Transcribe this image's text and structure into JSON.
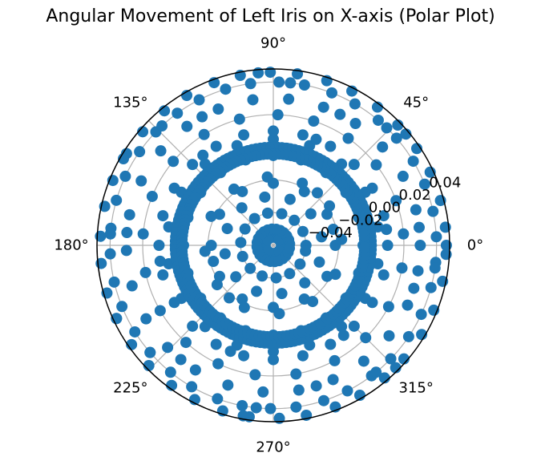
{
  "chart_data": {
    "type": "scatter",
    "projection": "polar",
    "title": "Angular Movement of Left Iris on X-axis (Polar Plot)",
    "theta_unit": "degrees",
    "angle_ticks": [
      "0°",
      "45°",
      "90°",
      "135°",
      "180°",
      "225°",
      "270°",
      "315°"
    ],
    "radial_ticks": [
      "−0.04",
      "−0.02",
      "0.00",
      "0.02",
      "0.04"
    ],
    "radial_tick_values": [
      -0.04,
      -0.02,
      0.0,
      0.02,
      0.04
    ],
    "rlim": [
      -0.06,
      0.048
    ],
    "grid": true,
    "marker_color": "#1f77b4",
    "series": [
      {
        "name": "",
        "rings": [
          {
            "r": 0.0,
            "theta_deg": [
              0,
              10,
              22,
              34,
              47,
              58,
              70,
              82,
              95,
              108,
              120,
              132,
              145,
              157,
              170,
              182,
              195,
              207,
              220,
              232,
              245,
              257,
              270,
              282,
              295,
              307,
              320,
              332,
              345,
              355,
              15,
              140,
              250
            ]
          },
          {
            "r": -0.055,
            "theta_deg": [
              0,
              30,
              60,
              90,
              120,
              150,
              180,
              210,
              240,
              270,
              300,
              330,
              45,
              135,
              225,
              315
            ]
          },
          {
            "r": -0.05,
            "theta_deg": [
              5,
              20,
              35,
              50,
              65,
              80,
              95,
              110,
              125,
              140,
              155,
              170,
              185,
              200,
              215,
              230,
              245,
              260,
              275,
              290,
              305,
              320,
              335,
              350
            ]
          },
          {
            "r": -0.04,
            "theta_deg": [
              0,
              25,
              50,
              75,
              100,
              125,
              150,
              175,
              200,
              225,
              250,
              275,
              300,
              325,
              350
            ]
          },
          {
            "r": -0.03,
            "theta_deg": [
              10,
              40,
              70,
              100,
              130,
              160,
              190,
              220,
              250,
              280,
              310,
              340
            ]
          },
          {
            "r": -0.022,
            "theta_deg": [
              0,
              30,
              60,
              90,
              120,
              150,
              180,
              210,
              240,
              270,
              300,
              330,
              15,
              195
            ]
          },
          {
            "r": -0.018,
            "theta_deg": [
              5,
              35,
              65,
              95,
              125,
              155,
              185,
              215,
              245,
              275,
              305,
              335,
              50,
              230
            ]
          },
          {
            "r": -0.005,
            "theta_deg": [
              0,
              18,
              36,
              54,
              72,
              90,
              108,
              126,
              144,
              162,
              180,
              198,
              216,
              234,
              252,
              270,
              288,
              306,
              324,
              342
            ]
          },
          {
            "r": 0.005,
            "theta_deg": [
              10,
              30,
              50,
              70,
              90,
              110,
              130,
              150,
              170,
              190,
              210,
              230,
              250,
              270,
              290,
              310,
              330,
              350
            ]
          },
          {
            "r": 0.01,
            "theta_deg": [
              0,
              15,
              30,
              45,
              60,
              75,
              90,
              105,
              120,
              135,
              150,
              165,
              180,
              195,
              210,
              225,
              240,
              255,
              270,
              285,
              300,
              315,
              330,
              345,
              8,
              68,
              128,
              188,
              248,
              308
            ]
          },
          {
            "r": 0.02,
            "theta_deg": [
              5,
              20,
              38,
              55,
              72,
              88,
              105,
              122,
              140,
              158,
              175,
              192,
              210,
              228,
              245,
              262,
              280,
              298,
              315,
              332,
              350
            ]
          },
          {
            "r": 0.03,
            "theta_deg": [
              0,
              14,
              28,
              42,
              56,
              70,
              84,
              98,
              112,
              126,
              140,
              154,
              168,
              182,
              196,
              210,
              224,
              238,
              252,
              266,
              280,
              294,
              308,
              322,
              336,
              350,
              7,
              63,
              119,
              175,
              231,
              287,
              343
            ]
          },
          {
            "r": 0.04,
            "theta_deg": [
              3,
              12,
              22,
              31,
              41,
              50,
              60,
              69,
              79,
              88,
              98,
              107,
              117,
              126,
              136,
              145,
              155,
              164,
              174,
              183,
              193,
              202,
              212,
              221,
              231,
              240,
              250,
              259,
              269,
              278,
              288,
              297,
              307,
              316,
              326,
              335,
              345,
              354,
              46,
              84,
              133,
              176,
              221,
              264,
              309,
              352
            ]
          },
          {
            "r": 0.046,
            "theta_deg": [
              0,
              6,
              15,
              25,
              34,
              44,
              53,
              63,
              72,
              82,
              91,
              101,
              110,
              120,
              129,
              139,
              148,
              158,
              167,
              177,
              186,
              196,
              205,
              215,
              224,
              234,
              243,
              253,
              262,
              272,
              281,
              291,
              300,
              310,
              319,
              329,
              338,
              348,
              357,
              40,
              95,
              150,
              205,
              260,
              315
            ]
          }
        ]
      }
    ]
  }
}
